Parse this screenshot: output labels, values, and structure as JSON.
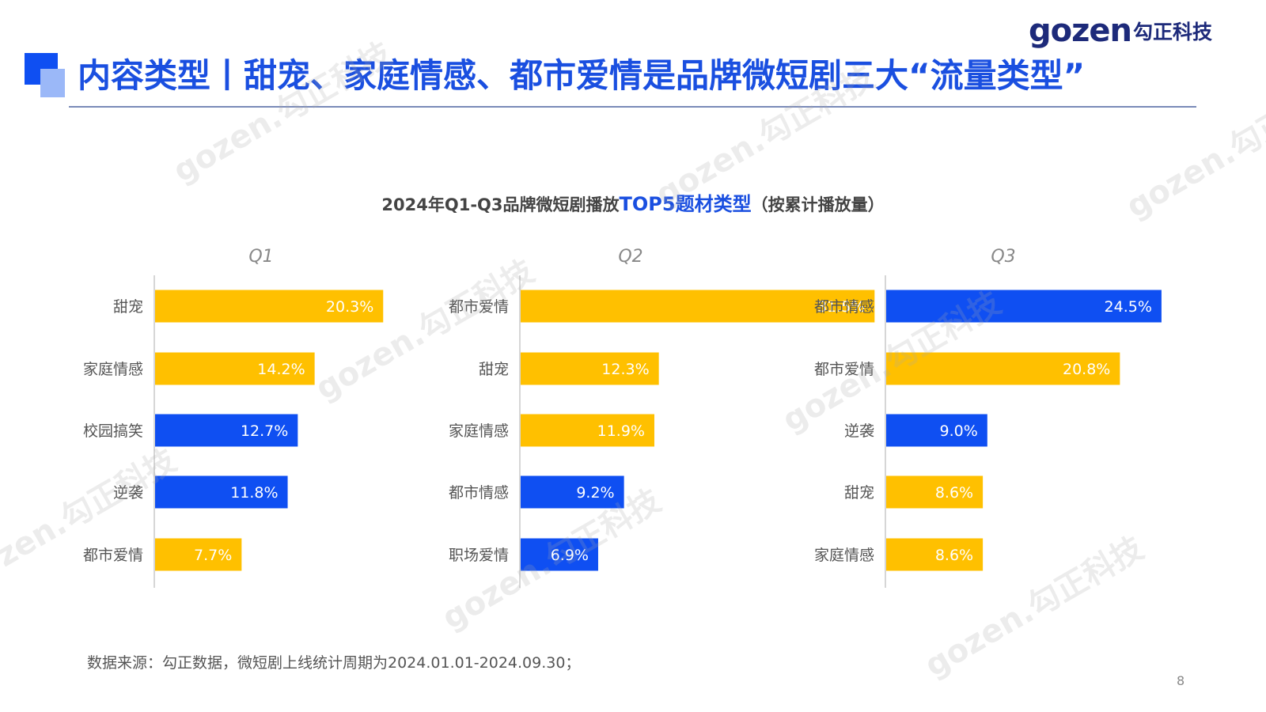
{
  "header": {
    "title": "内容类型丨甜宠、家庭情感、都市爱情是品牌微短剧三大“流量类型”",
    "logo_word": "gozen",
    "logo_cn": "勾正科技"
  },
  "chart_title": {
    "prefix": "2024年Q1-Q3品牌微短剧播放",
    "highlight": "TOP5题材类型",
    "suffix": "（按累计播放量）"
  },
  "colors": {
    "yellow": "#ffc000",
    "blue": "#0f4ff2",
    "title_blue": "#1a4fe0"
  },
  "chart_data": [
    {
      "type": "bar",
      "orientation": "horizontal",
      "title": "Q1",
      "categories": [
        "甜宠",
        "家庭情感",
        "校园搞笑",
        "逆袭",
        "都市爱情"
      ],
      "values": [
        20.3,
        14.2,
        12.7,
        11.8,
        7.7
      ],
      "labels": [
        "20.3%",
        "14.2%",
        "12.7%",
        "11.8%",
        "7.7%"
      ],
      "colors": [
        "yellow",
        "yellow",
        "blue",
        "blue",
        "yellow"
      ],
      "unit": "%"
    },
    {
      "type": "bar",
      "orientation": "horizontal",
      "title": "Q2",
      "categories": [
        "都市爱情",
        "甜宠",
        "家庭情感",
        "都市情感",
        "职场爱情"
      ],
      "values": [
        31.5,
        12.3,
        11.9,
        9.2,
        6.9
      ],
      "labels": [
        "31.5%",
        "12.3%",
        "11.9%",
        "9.2%",
        "6.9%"
      ],
      "colors": [
        "yellow",
        "yellow",
        "yellow",
        "blue",
        "blue"
      ],
      "unit": "%"
    },
    {
      "type": "bar",
      "orientation": "horizontal",
      "title": "Q3",
      "categories": [
        "都市情感",
        "都市爱情",
        "逆袭",
        "甜宠",
        "家庭情感"
      ],
      "values": [
        24.5,
        20.8,
        9.0,
        8.6,
        8.6
      ],
      "labels": [
        "24.5%",
        "20.8%",
        "9.0%",
        "8.6%",
        "8.6%"
      ],
      "colors": [
        "blue",
        "yellow",
        "blue",
        "yellow",
        "yellow"
      ],
      "unit": "%"
    }
  ],
  "footnote": "数据来源：勾正数据，微短剧上线统计周期为2024.01.01-2024.09.30；",
  "page_number": "8"
}
